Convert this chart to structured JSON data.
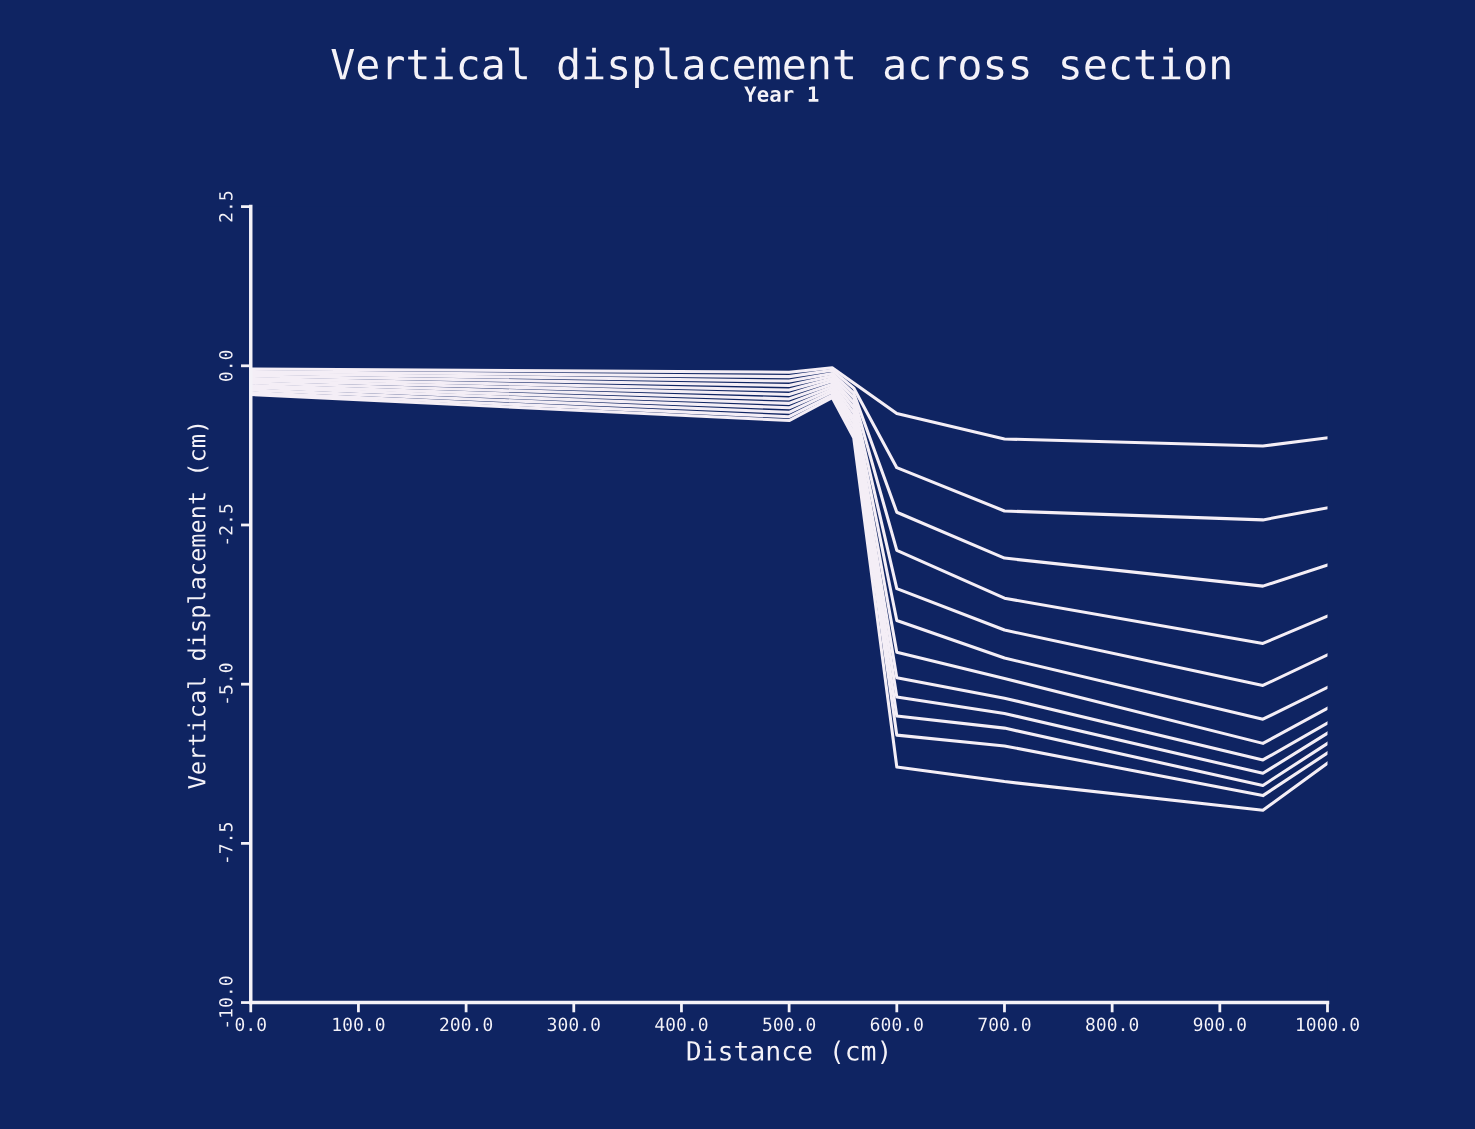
{
  "chart_data": {
    "type": "line",
    "title": "Vertical displacement across section",
    "subtitle": "Year 1",
    "xlabel": "Distance (cm)",
    "ylabel": "Vertical displacement (cm)",
    "x": [
      0,
      500,
      540,
      560,
      600,
      700,
      940,
      1000
    ],
    "xlim": [
      0,
      1000
    ],
    "ylim": [
      -10,
      2.5
    ],
    "xticks": [
      {
        "value": 0,
        "label": "0.0"
      },
      {
        "value": 100,
        "label": "100.0"
      },
      {
        "value": 200,
        "label": "200.0"
      },
      {
        "value": 300,
        "label": "300.0"
      },
      {
        "value": 400,
        "label": "400.0"
      },
      {
        "value": 500,
        "label": "500.0"
      },
      {
        "value": 600,
        "label": "600.0"
      },
      {
        "value": 700,
        "label": "700.0"
      },
      {
        "value": 800,
        "label": "800.0"
      },
      {
        "value": 900,
        "label": "900.0"
      },
      {
        "value": 1000,
        "label": "1000.0"
      }
    ],
    "yticks": [
      {
        "value": -10,
        "label": "-10.0"
      },
      {
        "value": -7.5,
        "label": "-7.5"
      },
      {
        "value": -5,
        "label": "-5.0"
      },
      {
        "value": -2.5,
        "label": "-2.5"
      },
      {
        "value": 0,
        "label": "0.0"
      },
      {
        "value": 2.5,
        "label": "2.5"
      }
    ],
    "grid": false,
    "marker": "none",
    "line_style": "solid",
    "series": [
      {
        "color": "#f4eef6",
        "values": [
          -0.05,
          -0.1,
          -0.03,
          -0.27,
          -0.75,
          -1.15,
          -1.26,
          -1.13
        ]
      },
      {
        "color": "#f4eef6",
        "values": [
          -0.09,
          -0.17,
          -0.07,
          -0.35,
          -1.6,
          -2.28,
          -2.42,
          -2.23
        ]
      },
      {
        "color": "#f4eef6",
        "values": [
          -0.12,
          -0.24,
          -0.12,
          -0.43,
          -2.3,
          -3.02,
          -3.46,
          -3.13
        ]
      },
      {
        "color": "#f4eef6",
        "values": [
          -0.16,
          -0.31,
          -0.16,
          -0.5,
          -2.9,
          -3.65,
          -4.36,
          -3.93
        ]
      },
      {
        "color": "#f4eef6",
        "values": [
          -0.2,
          -0.38,
          -0.2,
          -0.58,
          -3.5,
          -4.15,
          -5.02,
          -4.54
        ]
      },
      {
        "color": "#f4eef6",
        "values": [
          -0.23,
          -0.45,
          -0.24,
          -0.66,
          -4.0,
          -4.59,
          -5.55,
          -5.05
        ]
      },
      {
        "color": "#f4eef6",
        "values": [
          -0.27,
          -0.52,
          -0.29,
          -0.74,
          -4.5,
          -4.91,
          -5.93,
          -5.38
        ]
      },
      {
        "color": "#f4eef6",
        "values": [
          -0.31,
          -0.59,
          -0.33,
          -0.82,
          -4.9,
          -5.22,
          -6.19,
          -5.61
        ]
      },
      {
        "color": "#f4eef6",
        "values": [
          -0.34,
          -0.66,
          -0.37,
          -0.89,
          -5.2,
          -5.46,
          -6.4,
          -5.77
        ]
      },
      {
        "color": "#f4eef6",
        "values": [
          -0.38,
          -0.73,
          -0.41,
          -0.97,
          -5.5,
          -5.69,
          -6.59,
          -5.93
        ]
      },
      {
        "color": "#f4eef6",
        "values": [
          -0.42,
          -0.8,
          -0.46,
          -1.05,
          -5.8,
          -5.97,
          -6.75,
          -6.08
        ]
      },
      {
        "color": "#f4eef6",
        "values": [
          -0.45,
          -0.86,
          -0.5,
          -1.13,
          -6.3,
          -6.53,
          -6.98,
          -6.24
        ]
      }
    ]
  }
}
